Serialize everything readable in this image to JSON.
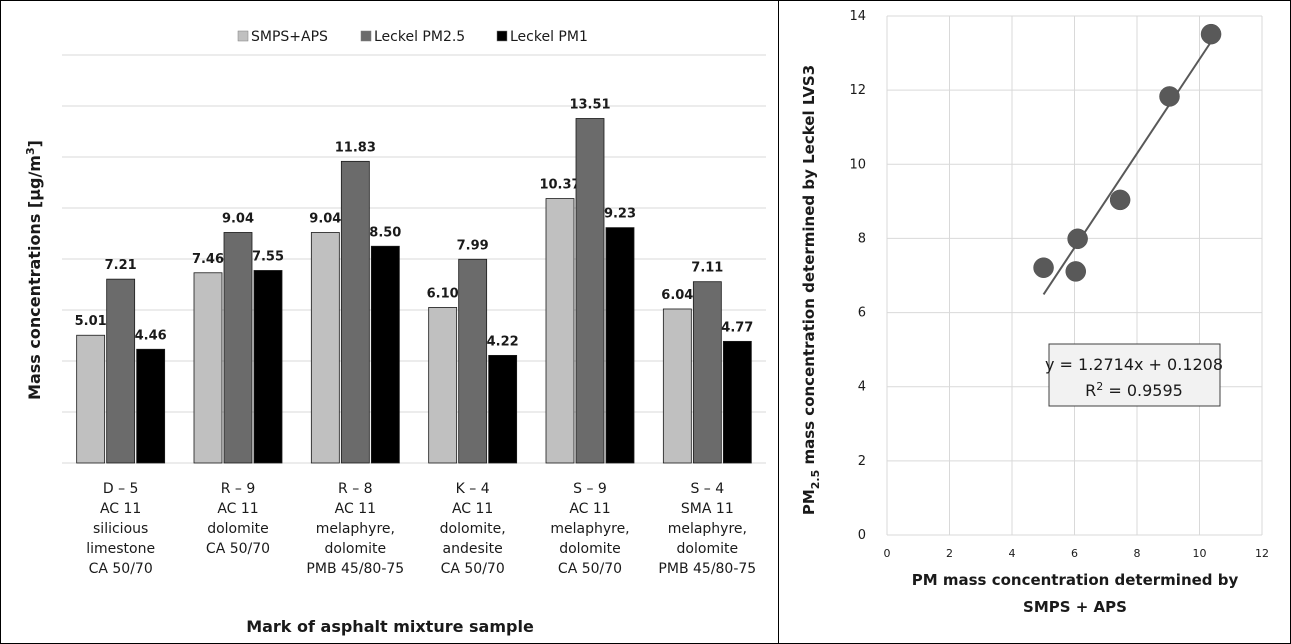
{
  "chart_data": [
    {
      "type": "bar",
      "xlabel": "Mark of asphalt mixture sample",
      "ylabel_main": "Mass concentrations [μg/m",
      "ylabel_sup": "3",
      "ylabel_end": "]",
      "ylim": [
        0,
        16
      ],
      "grid": true,
      "legend_position": "top",
      "categories": [
        [
          "D – 5",
          "AC 11",
          "silicious",
          "limestone",
          "CA 50/70"
        ],
        [
          "R – 9",
          "AC 11",
          "dolomite",
          "CA 50/70"
        ],
        [
          "R – 8",
          "AC 11",
          "melaphyre,",
          "dolomite",
          "PMB 45/80-75"
        ],
        [
          "K – 4",
          "AC 11",
          "dolomite,",
          "andesite",
          "CA 50/70"
        ],
        [
          "S – 9",
          "AC 11",
          "melaphyre,",
          "dolomite",
          "CA 50/70"
        ],
        [
          "S – 4",
          "SMA 11",
          "melaphyre,",
          "dolomite",
          "PMB 45/80-75"
        ]
      ],
      "series": [
        {
          "name": "SMPS+APS",
          "color": "#c0c0c0",
          "values": [
            5.01,
            7.46,
            9.04,
            6.1,
            10.37,
            6.04
          ],
          "labels": [
            "5.01",
            "7.46",
            "9.04",
            "6.10",
            "10.37",
            "6.04"
          ]
        },
        {
          "name": "Leckel PM2.5",
          "color": "#6b6b6b",
          "values": [
            7.21,
            9.04,
            11.83,
            7.99,
            13.51,
            7.11
          ],
          "labels": [
            "7.21",
            "9.04",
            "11.83",
            "7.99",
            "13.51",
            "7.11"
          ]
        },
        {
          "name": "Leckel PM1",
          "color": "#000000",
          "values": [
            4.46,
            7.55,
            8.5,
            4.22,
            9.23,
            4.77
          ],
          "labels": [
            "4.46",
            "7.55",
            "8.50",
            "4.22",
            "9.23",
            "4.77"
          ]
        }
      ]
    },
    {
      "type": "scatter",
      "xlabel": [
        "PM mass concentration determined by",
        "SMPS + APS"
      ],
      "ylabel_pre": "PM",
      "ylabel_sub": "2.5",
      "ylabel_post": " mass concentration determined by Leckel LVS3",
      "xlim": [
        0,
        12
      ],
      "ylim": [
        0,
        14
      ],
      "xticks": [
        0,
        2,
        4,
        6,
        8,
        10,
        12
      ],
      "yticks": [
        0,
        2,
        4,
        6,
        8,
        10,
        12,
        14
      ],
      "points": [
        {
          "x": 5.01,
          "y": 7.21
        },
        {
          "x": 7.46,
          "y": 9.04
        },
        {
          "x": 9.04,
          "y": 11.83
        },
        {
          "x": 6.1,
          "y": 7.99
        },
        {
          "x": 10.37,
          "y": 13.51
        },
        {
          "x": 6.04,
          "y": 7.11
        }
      ],
      "trendline": {
        "slope": 1.2714,
        "intercept": 0.1208,
        "x_range": [
          5.01,
          10.37
        ]
      },
      "equation": "y = 1.2714x + 0.1208",
      "r2_pre": "R",
      "r2_sup": "2",
      "r2_post": " = 0.9595",
      "point_color": "#595959",
      "line_color": "#595959"
    }
  ]
}
